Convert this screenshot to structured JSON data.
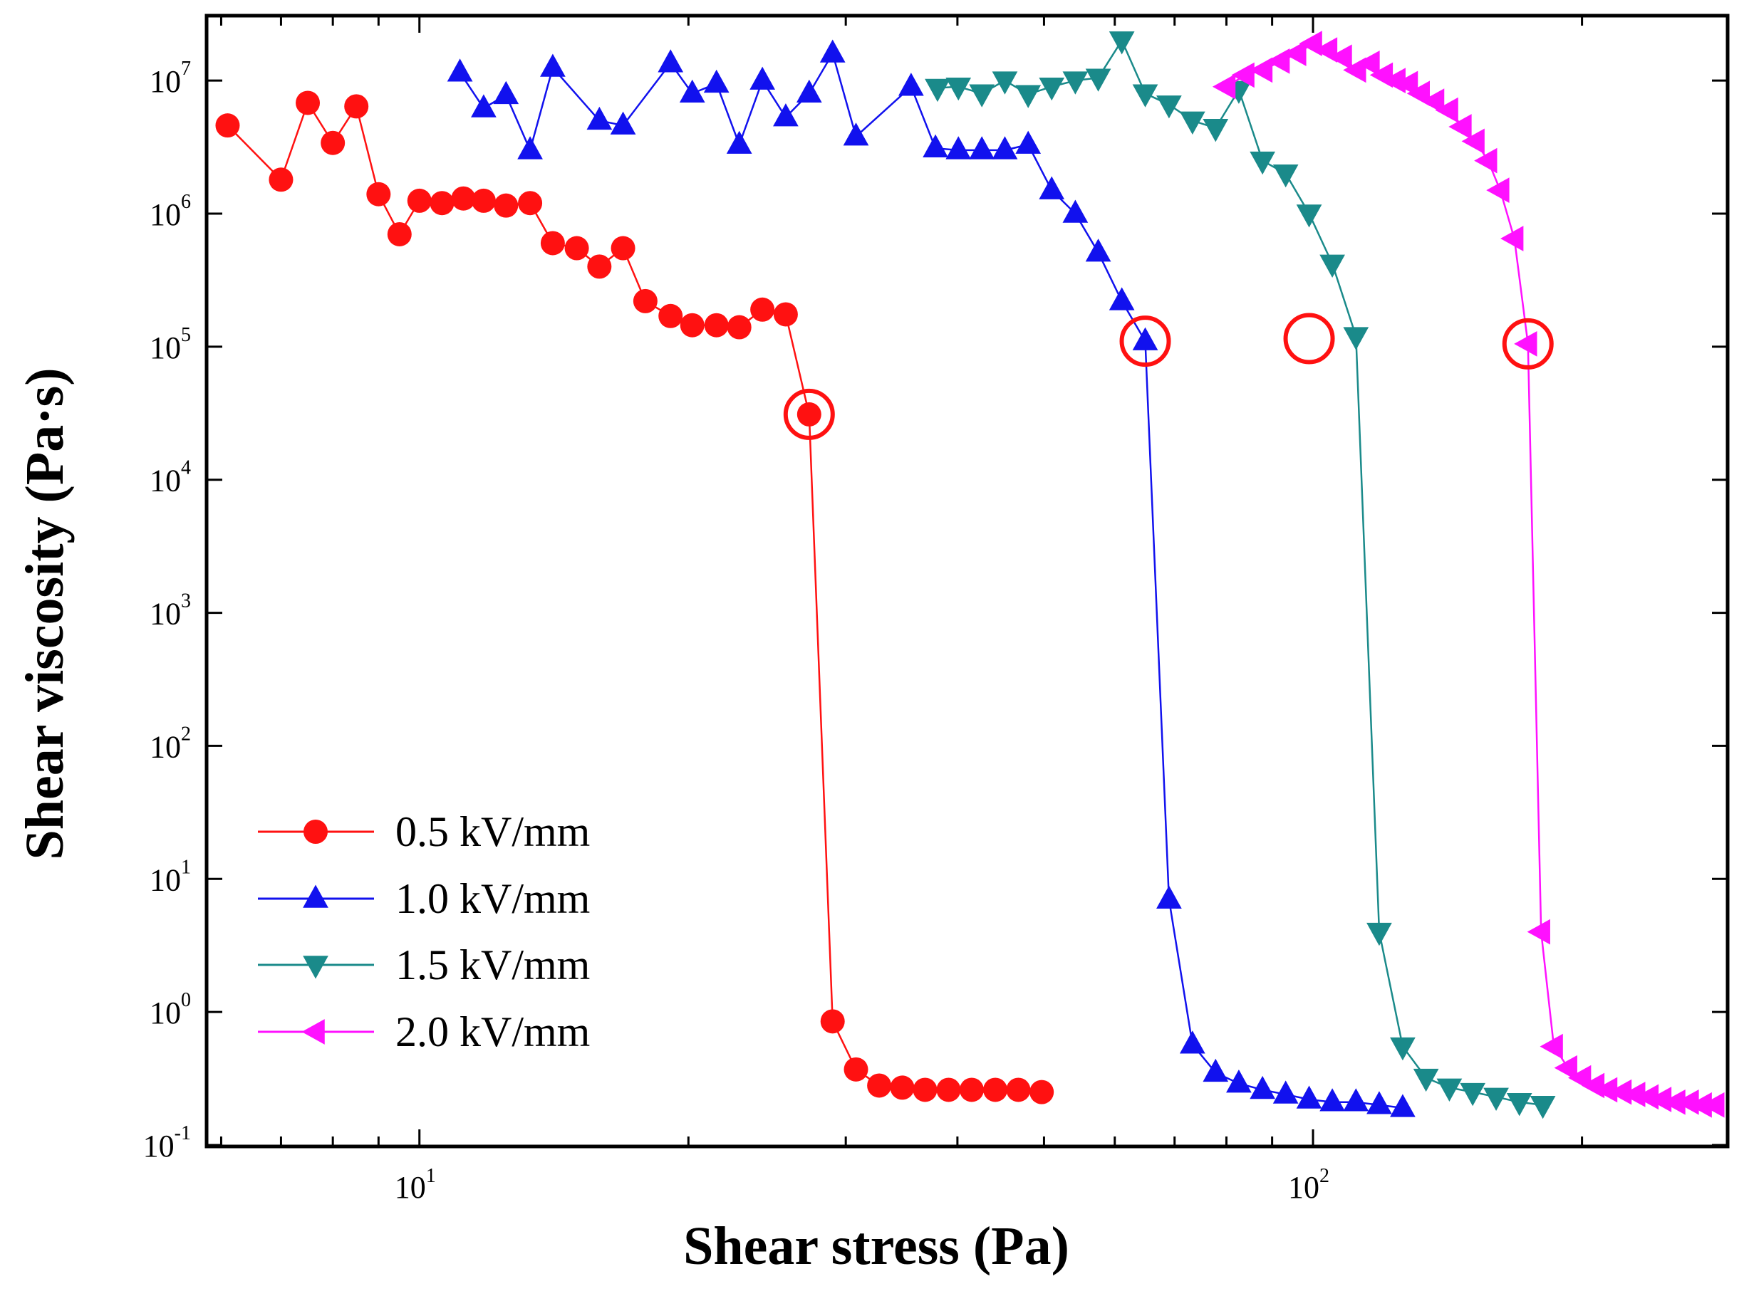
{
  "chart_data": {
    "type": "line",
    "title": "",
    "xlabel": "Shear stress (Pa)",
    "ylabel": "Shear viscosity (Pa·s)",
    "xscale": "log",
    "yscale": "log",
    "xlim": [
      5.8,
      290
    ],
    "ylim": [
      0.1,
      30000000
    ],
    "x_ticks": [
      {
        "base": "10",
        "exp": "1",
        "value": 10
      },
      {
        "base": "10",
        "exp": "2",
        "value": 100
      }
    ],
    "y_ticks": [
      {
        "base": "10",
        "exp": "-1",
        "value": 0.1
      },
      {
        "base": "10",
        "exp": "0",
        "value": 1
      },
      {
        "base": "10",
        "exp": "1",
        "value": 10
      },
      {
        "base": "10",
        "exp": "2",
        "value": 100
      },
      {
        "base": "10",
        "exp": "3",
        "value": 1000
      },
      {
        "base": "10",
        "exp": "4",
        "value": 10000
      },
      {
        "base": "10",
        "exp": "5",
        "value": 100000
      },
      {
        "base": "10",
        "exp": "6",
        "value": 1000000
      },
      {
        "base": "10",
        "exp": "7",
        "value": 10000000
      }
    ],
    "legend_position": "bottom-left",
    "series": [
      {
        "name": "0.5 kV/mm",
        "color": "#ff1111",
        "marker": "circle",
        "x": [
          6.1,
          7.0,
          7.5,
          8.0,
          8.5,
          9.0,
          9.5,
          10.0,
          10.6,
          11.2,
          11.8,
          12.5,
          13.3,
          14.1,
          15.0,
          15.9,
          16.9,
          17.9,
          19.1,
          20.2,
          21.5,
          22.8,
          24.2,
          25.7,
          27.3,
          29.0,
          30.8,
          32.7,
          34.7,
          36.8,
          39.1,
          41.5,
          44.1,
          46.8,
          49.7
        ],
        "y": [
          4600000,
          1800000,
          6800000,
          3400000,
          6400000,
          1400000,
          700000,
          1250000,
          1200000,
          1300000,
          1250000,
          1150000,
          1200000,
          600000,
          550000,
          400000,
          550000,
          220000,
          170000,
          145000,
          145000,
          140000,
          190000,
          175000,
          31000,
          0.85,
          0.37,
          0.28,
          0.27,
          0.26,
          0.26,
          0.26,
          0.26,
          0.26,
          0.25
        ]
      },
      {
        "name": "1.0 kV/mm",
        "color": "#1111ee",
        "marker": "triangle-up",
        "x": [
          11.1,
          11.8,
          12.5,
          13.3,
          14.1,
          15.9,
          16.9,
          19.1,
          20.2,
          21.5,
          22.8,
          24.2,
          25.7,
          27.3,
          29.0,
          30.8,
          35.5,
          37.8,
          40.1,
          42.6,
          45.2,
          48.0,
          51.0,
          54.2,
          57.5,
          61.1,
          64.9,
          69.0,
          73.3,
          77.8,
          82.6,
          87.8,
          93.2,
          99.0,
          105.1,
          111.7,
          118.6,
          126.0
        ],
        "y": [
          11500000,
          6200000,
          7800000,
          3000000,
          12500000,
          5000000,
          4600000,
          13500000,
          8000000,
          9500000,
          3300000,
          10000000,
          5300000,
          8000000,
          16000000,
          3800000,
          9000000,
          3100000,
          3000000,
          3000000,
          3000000,
          3300000,
          1500000,
          1000000,
          510000,
          220000,
          110000,
          7.0,
          0.57,
          0.35,
          0.29,
          0.26,
          0.24,
          0.22,
          0.21,
          0.21,
          0.2,
          0.19
        ]
      },
      {
        "name": "1.5 kV/mm",
        "color": "#1a8a8a",
        "marker": "triangle-down",
        "x": [
          38.0,
          40.1,
          42.6,
          45.2,
          48.0,
          51.0,
          54.2,
          57.5,
          61.1,
          64.9,
          69.0,
          73.3,
          77.8,
          82.6,
          87.8,
          93.2,
          99.0,
          105.1,
          111.7,
          118.6,
          126.0,
          133.8,
          142.1,
          150.9,
          160.3,
          170.2,
          180.8
        ],
        "y": [
          8800000,
          9000000,
          8000000,
          10000000,
          7900000,
          9000000,
          10000000,
          10500000,
          20000000,
          8000000,
          6600000,
          5000000,
          4400000,
          8500000,
          2500000,
          2000000,
          1000000,
          420000,
          120000,
          4.0,
          0.55,
          0.32,
          0.27,
          0.25,
          0.23,
          0.21,
          0.2
        ]
      },
      {
        "name": "2.0 kV/mm",
        "color": "#ff11ff",
        "marker": "triangle-left",
        "x": [
          80.0,
          84.0,
          88.0,
          92.0,
          96.0,
          100.0,
          104.0,
          108.0,
          112.0,
          116.0,
          120.0,
          124.0,
          128.0,
          132.0,
          137.0,
          142.0,
          147.0,
          152.0,
          157.0,
          162.0,
          168.0,
          174.0,
          180.0,
          186.0,
          193.0,
          200.0,
          207.0,
          214.0,
          222.0,
          230.0,
          238.0,
          246.0,
          255.0,
          264.0,
          273.0,
          282.0
        ],
        "y": [
          9000000,
          11000000,
          12000000,
          14000000,
          16000000,
          19000000,
          17000000,
          15000000,
          12000000,
          13500000,
          11000000,
          10000000,
          9500000,
          8000000,
          7000000,
          6000000,
          4500000,
          3500000,
          2500000,
          1500000,
          650000,
          105000,
          4.0,
          0.55,
          0.38,
          0.32,
          0.28,
          0.26,
          0.25,
          0.24,
          0.23,
          0.22,
          0.21,
          0.21,
          0.2,
          0.2
        ]
      }
    ],
    "annotations": [
      {
        "kind": "circle",
        "color": "#ff1111",
        "x": 27.3,
        "y": 31000
      },
      {
        "kind": "circle",
        "color": "#ff1111",
        "x": 64.9,
        "y": 110000
      },
      {
        "kind": "circle",
        "color": "#ff1111",
        "x": 99.0,
        "y": 115000
      },
      {
        "kind": "circle",
        "color": "#ff1111",
        "x": 174.0,
        "y": 105000
      }
    ]
  }
}
